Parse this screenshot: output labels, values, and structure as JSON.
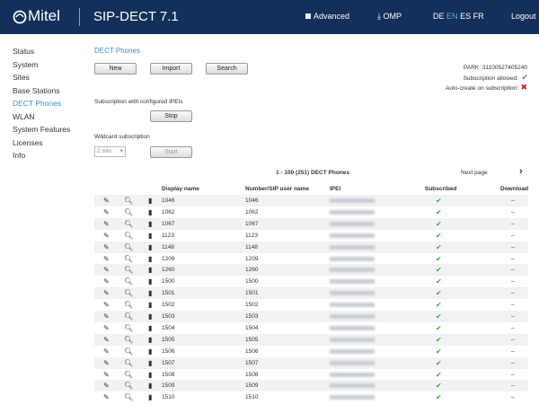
{
  "header": {
    "logo": "Mitel",
    "product": "SIP-DECT 7.1",
    "advanced": "Advanced",
    "omp": "OMP",
    "languages": [
      "DE",
      "EN",
      "ES",
      "FR"
    ],
    "logout": "Logout"
  },
  "nav": [
    "Status",
    "System",
    "Sites",
    "Base Stations",
    "DECT Phones",
    "WLAN",
    "System Features",
    "Licenses",
    "Info"
  ],
  "page": {
    "title": "DECT Phones",
    "buttons": [
      "New",
      "Import",
      "Search"
    ],
    "park": "PARK: 31100527405240",
    "subscription_allowed": "Subscription allowed:",
    "auto_create": "Auto-create on subscription:",
    "configured_label": "Subscription with configured IPEIs",
    "stop": "Stop",
    "wildcard_label": "Wildcard subscription",
    "wildcard_time": "2 min",
    "start": "Start",
    "pager": "1 - 100 (251) DECT Phones",
    "next_page": "Next page"
  },
  "table": {
    "columns": [
      "Display name",
      "Number/SIP user name",
      "IPEI",
      "Subscribed",
      "Download"
    ],
    "rows": [
      [
        "1046",
        "1046",
        "–"
      ],
      [
        "1062",
        "1062",
        "–"
      ],
      [
        "1067",
        "1067",
        "–"
      ],
      [
        "1123",
        "1123",
        "–"
      ],
      [
        "1148",
        "1148",
        "–"
      ],
      [
        "1209",
        "1209",
        "–"
      ],
      [
        "1260",
        "1260",
        "–"
      ],
      [
        "1500",
        "1500",
        "–"
      ],
      [
        "1501",
        "1501",
        "–"
      ],
      [
        "1502",
        "1502",
        "–"
      ],
      [
        "1503",
        "1503",
        "–"
      ],
      [
        "1504",
        "1504",
        "–"
      ],
      [
        "1505",
        "1505",
        "–"
      ],
      [
        "1506",
        "1506",
        "–"
      ],
      [
        "1507",
        "1507",
        "–"
      ],
      [
        "1508",
        "1508",
        "–"
      ],
      [
        "1509",
        "1509",
        "–"
      ],
      [
        "1510",
        "1510",
        "–"
      ]
    ]
  }
}
